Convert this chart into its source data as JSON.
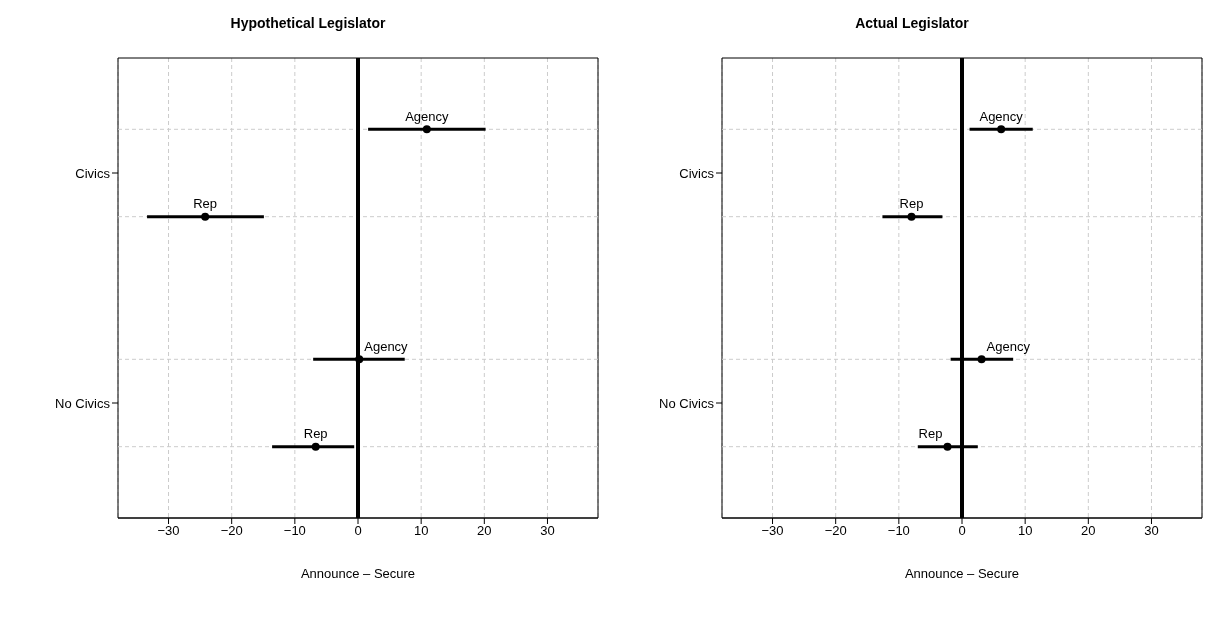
{
  "chart_data": [
    {
      "type": "scatter",
      "orientation": "horizontal",
      "title": "Hypothetical Legislator",
      "xlabel": "Announce – Secure",
      "categories": [
        "Civics",
        "No Civics"
      ],
      "marker": "circle",
      "grid": true,
      "xlim": [
        -38,
        38
      ],
      "xticks": [
        -30,
        -20,
        -10,
        0,
        10,
        20,
        30
      ],
      "series": [
        {
          "name": "Agency",
          "color": "#000000",
          "values": [
            10.9,
            0.2
          ],
          "errors": [
            [
              1.6,
              20.2
            ],
            [
              -7.1,
              7.4
            ]
          ]
        },
        {
          "name": "Rep",
          "color": "#000000",
          "values": [
            -24.2,
            -6.7
          ],
          "errors": [
            [
              -33.4,
              -14.9
            ],
            [
              -13.6,
              -0.6
            ]
          ]
        }
      ],
      "ref_lines": [
        {
          "axis": "x",
          "value": 0,
          "color": "#000000"
        }
      ]
    },
    {
      "type": "scatter",
      "orientation": "horizontal",
      "title": "Actual Legislator",
      "xlabel": "Announce – Secure",
      "categories": [
        "Civics",
        "No Civics"
      ],
      "marker": "circle",
      "grid": true,
      "xlim": [
        -38,
        38
      ],
      "xticks": [
        -30,
        -20,
        -10,
        0,
        10,
        20,
        30
      ],
      "series": [
        {
          "name": "Agency",
          "color": "#000000",
          "values": [
            6.2,
            3.1
          ],
          "errors": [
            [
              1.2,
              11.2
            ],
            [
              -1.8,
              8.1
            ]
          ]
        },
        {
          "name": "Rep",
          "color": "#000000",
          "values": [
            -8.0,
            -2.3
          ],
          "errors": [
            [
              -12.6,
              -3.1
            ],
            [
              -7.0,
              2.5
            ]
          ]
        }
      ],
      "ref_lines": [
        {
          "axis": "x",
          "value": 0,
          "color": "#000000"
        }
      ]
    }
  ]
}
